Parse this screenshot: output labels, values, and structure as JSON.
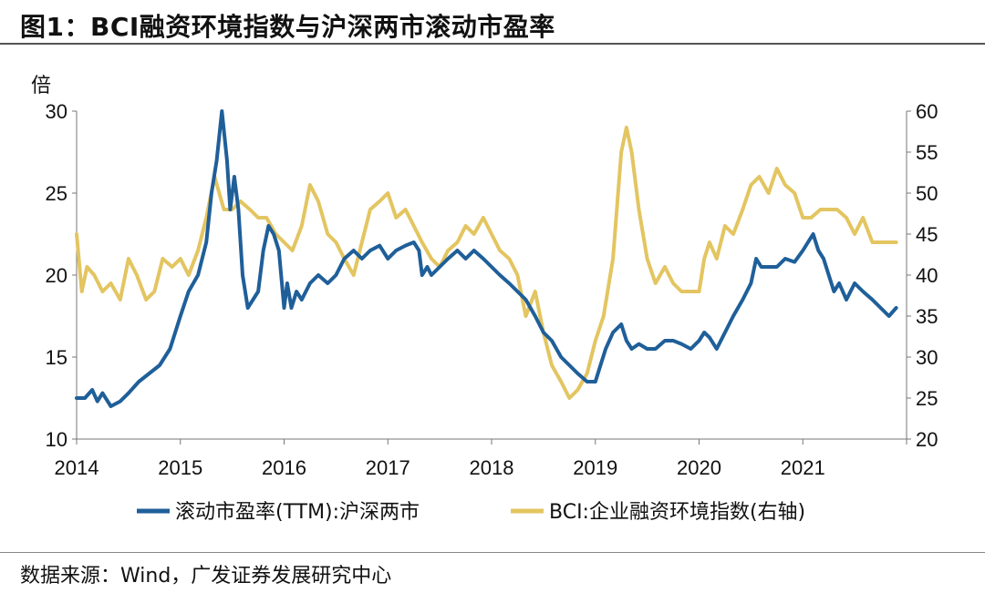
{
  "header": {
    "title": "图1：BCI融资环境指数与沪深两市滚动市盈率"
  },
  "footer": {
    "source": "数据来源：Wind，广发证券发展研究中心"
  },
  "chart_data": {
    "type": "line",
    "left_axis": {
      "unit_label": "倍",
      "ylim": [
        10,
        30
      ],
      "ticks": [
        "30",
        "25",
        "20",
        "15",
        "10"
      ]
    },
    "right_axis": {
      "ylim": [
        20,
        60
      ],
      "ticks": [
        "60",
        "55",
        "50",
        "45",
        "40",
        "35",
        "30",
        "25",
        "20"
      ]
    },
    "x_ticks": [
      "2014",
      "2015",
      "2016",
      "2017",
      "2018",
      "2019",
      "2020",
      "2021"
    ],
    "series": [
      {
        "name": "滚动市盈率(TTM):沪深两市",
        "axis": "left",
        "color": "#1f5f99",
        "x": [
          2014.0,
          2014.08,
          2014.15,
          2014.2,
          2014.25,
          2014.33,
          2014.42,
          2014.5,
          2014.6,
          2014.7,
          2014.8,
          2014.9,
          2015.0,
          2015.08,
          2015.17,
          2015.25,
          2015.3,
          2015.35,
          2015.4,
          2015.45,
          2015.48,
          2015.52,
          2015.56,
          2015.6,
          2015.65,
          2015.7,
          2015.75,
          2015.8,
          2015.85,
          2015.9,
          2015.95,
          2016.0,
          2016.03,
          2016.07,
          2016.12,
          2016.17,
          2016.25,
          2016.33,
          2016.42,
          2016.5,
          2016.58,
          2016.67,
          2016.75,
          2016.83,
          2016.92,
          2017.0,
          2017.08,
          2017.17,
          2017.25,
          2017.3,
          2017.33,
          2017.38,
          2017.42,
          2017.5,
          2017.58,
          2017.67,
          2017.75,
          2017.83,
          2017.92,
          2018.0,
          2018.08,
          2018.17,
          2018.25,
          2018.33,
          2018.42,
          2018.5,
          2018.58,
          2018.67,
          2018.75,
          2018.83,
          2018.92,
          2019.0,
          2019.05,
          2019.1,
          2019.17,
          2019.25,
          2019.3,
          2019.35,
          2019.42,
          2019.5,
          2019.58,
          2019.67,
          2019.75,
          2019.83,
          2019.92,
          2020.0,
          2020.05,
          2020.1,
          2020.17,
          2020.25,
          2020.33,
          2020.42,
          2020.5,
          2020.55,
          2020.6,
          2020.67,
          2020.75,
          2020.83,
          2020.92,
          2021.0,
          2021.05,
          2021.1,
          2021.15,
          2021.2,
          2021.25,
          2021.3,
          2021.35,
          2021.42,
          2021.5,
          2021.58,
          2021.67,
          2021.75,
          2021.83,
          2021.9
        ],
        "values": [
          12.5,
          12.5,
          13.0,
          12.3,
          12.8,
          12.0,
          12.3,
          12.8,
          13.5,
          14.0,
          14.5,
          15.5,
          17.5,
          19.0,
          20.0,
          22.0,
          25.0,
          27.0,
          30.0,
          27.0,
          24.0,
          26.0,
          24.0,
          20.0,
          18.0,
          18.5,
          19.0,
          21.5,
          23.0,
          22.5,
          21.5,
          18.0,
          19.5,
          18.0,
          19.0,
          18.5,
          19.5,
          20.0,
          19.5,
          20.0,
          21.0,
          21.5,
          21.0,
          21.5,
          21.8,
          21.0,
          21.5,
          21.8,
          22.0,
          21.5,
          20.0,
          20.5,
          20.0,
          20.5,
          21.0,
          21.5,
          21.0,
          21.5,
          21.0,
          20.5,
          20.0,
          19.5,
          19.0,
          18.5,
          17.5,
          16.5,
          16.0,
          15.0,
          14.5,
          14.0,
          13.5,
          13.5,
          14.5,
          15.5,
          16.5,
          17.0,
          16.0,
          15.5,
          15.8,
          15.5,
          15.5,
          16.0,
          16.0,
          15.8,
          15.5,
          16.0,
          16.5,
          16.2,
          15.5,
          16.5,
          17.5,
          18.5,
          19.5,
          21.0,
          20.5,
          20.5,
          20.5,
          21.0,
          20.8,
          21.5,
          22.0,
          22.5,
          21.5,
          21.0,
          20.0,
          19.0,
          19.5,
          18.5,
          19.5,
          19.0,
          18.5,
          18.0,
          17.5,
          18.0
        ]
      },
      {
        "name": "BCI:企业融资环境指数(右轴)",
        "axis": "right",
        "color": "#e3c561",
        "x": [
          2014.0,
          2014.05,
          2014.1,
          2014.17,
          2014.25,
          2014.33,
          2014.42,
          2014.5,
          2014.58,
          2014.67,
          2014.75,
          2014.83,
          2014.92,
          2015.0,
          2015.08,
          2015.17,
          2015.25,
          2015.33,
          2015.42,
          2015.5,
          2015.58,
          2015.67,
          2015.75,
          2015.83,
          2015.92,
          2016.0,
          2016.08,
          2016.17,
          2016.25,
          2016.33,
          2016.42,
          2016.5,
          2016.58,
          2016.67,
          2016.75,
          2016.83,
          2016.92,
          2017.0,
          2017.08,
          2017.17,
          2017.25,
          2017.33,
          2017.42,
          2017.5,
          2017.58,
          2017.67,
          2017.75,
          2017.83,
          2017.92,
          2018.0,
          2018.08,
          2018.17,
          2018.25,
          2018.33,
          2018.42,
          2018.5,
          2018.58,
          2018.67,
          2018.75,
          2018.83,
          2018.92,
          2019.0,
          2019.08,
          2019.17,
          2019.25,
          2019.3,
          2019.35,
          2019.42,
          2019.5,
          2019.58,
          2019.67,
          2019.75,
          2019.83,
          2019.92,
          2020.0,
          2020.05,
          2020.1,
          2020.17,
          2020.25,
          2020.33,
          2020.42,
          2020.5,
          2020.58,
          2020.67,
          2020.75,
          2020.83,
          2020.92,
          2021.0,
          2021.08,
          2021.17,
          2021.25,
          2021.33,
          2021.42,
          2021.5,
          2021.58,
          2021.67,
          2021.75,
          2021.83,
          2021.9
        ],
        "values": [
          45,
          38,
          41,
          40,
          38,
          39,
          37,
          42,
          40,
          37,
          38,
          42,
          41,
          42,
          40,
          43,
          47,
          52,
          48,
          48,
          49,
          48,
          47,
          47,
          45,
          44,
          43,
          46,
          51,
          49,
          45,
          44,
          42,
          40,
          44,
          48,
          49,
          50,
          47,
          48,
          46,
          44,
          42,
          41,
          43,
          44,
          46,
          45,
          47,
          45,
          43,
          42,
          40,
          35,
          38,
          33,
          29,
          27,
          25,
          26,
          28,
          32,
          35,
          42,
          55,
          58,
          55,
          48,
          42,
          39,
          41,
          39,
          38,
          38,
          38,
          42,
          44,
          42,
          46,
          45,
          48,
          51,
          52,
          50,
          53,
          51,
          50,
          47,
          47,
          48,
          48,
          48,
          47,
          45,
          47,
          44,
          44,
          44,
          44
        ]
      }
    ]
  }
}
